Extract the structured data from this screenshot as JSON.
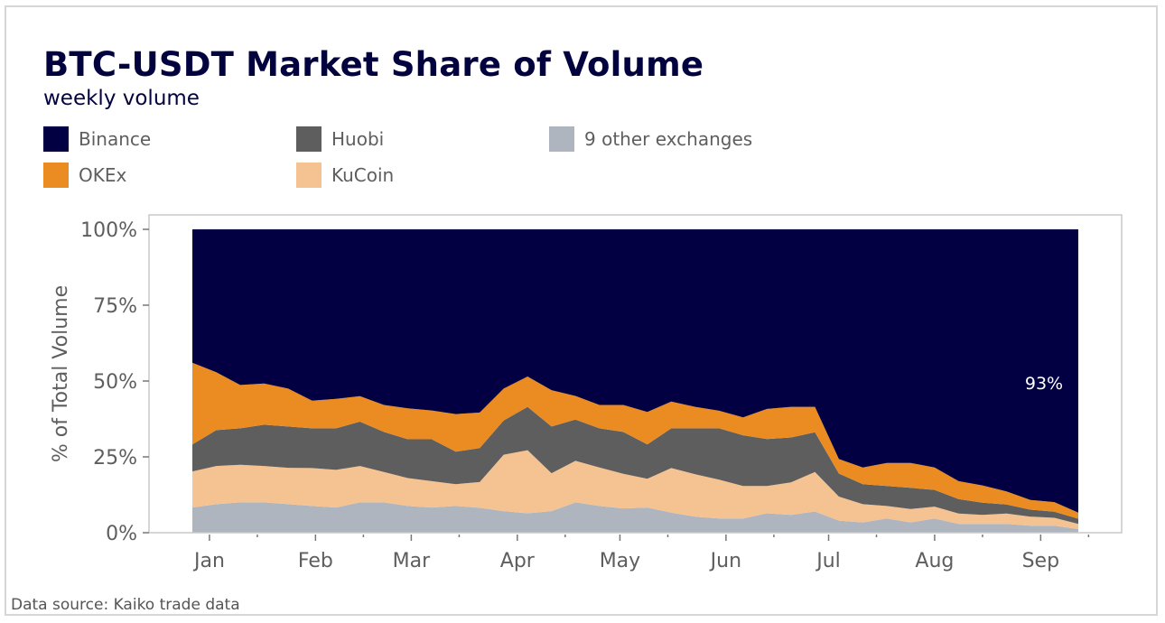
{
  "title": "BTC-USDT Market Share of Volume",
  "subtitle": "weekly volume",
  "source": "Data source: Kaiko trade data",
  "chart_data": {
    "type": "area",
    "stacked": true,
    "normalized": true,
    "title": "BTC-USDT Market Share of Volume",
    "subtitle": "weekly volume",
    "ylabel": "% of Total Volume",
    "xlabel": "",
    "ylim": [
      0,
      100
    ],
    "yticks": [
      0,
      25,
      50,
      75,
      100
    ],
    "ytick_labels": [
      "0%",
      "25%",
      "50%",
      "75%",
      "100%"
    ],
    "xlim": [
      "2020-12-27",
      "2021-09-12"
    ],
    "xticks": [
      {
        "date": "2021-01-01",
        "label": "Jan"
      },
      {
        "date": "2021-02-01",
        "label": "Feb"
      },
      {
        "date": "2021-03-01",
        "label": "Mar"
      },
      {
        "date": "2021-04-01",
        "label": "Apr"
      },
      {
        "date": "2021-05-01",
        "label": "May"
      },
      {
        "date": "2021-06-01",
        "label": "Jun"
      },
      {
        "date": "2021-07-01",
        "label": "Jul"
      },
      {
        "date": "2021-08-01",
        "label": "Aug"
      },
      {
        "date": "2021-09-01",
        "label": "Sep"
      }
    ],
    "grid": false,
    "legend_position": "top-left",
    "annotation": {
      "text": "93%",
      "series": "Binance",
      "date": "2021-09-12"
    },
    "x_start": "2020-12-27",
    "x_step_days": 7,
    "series": [
      {
        "name": "9 other exchanges",
        "color": "#aeb5bf",
        "values": [
          8.3,
          9.4,
          10.0,
          10.0,
          9.4,
          8.8,
          8.3,
          10.0,
          10.0,
          8.8,
          8.3,
          8.8,
          8.2,
          7.1,
          6.4,
          7.1,
          10.0,
          8.8,
          8.0,
          8.3,
          6.6,
          5.3,
          4.7,
          4.7,
          6.4,
          5.9,
          7.0,
          4.0,
          3.4,
          4.7,
          3.4,
          4.7,
          2.9,
          2.9,
          2.9,
          2.3,
          2.3,
          1.2
        ]
      },
      {
        "name": "KuCoin",
        "color": "#f5c392",
        "values": [
          11.9,
          12.6,
          12.4,
          12.0,
          12.0,
          12.5,
          12.4,
          12.0,
          10.0,
          9.2,
          8.7,
          7.2,
          8.5,
          18.6,
          20.8,
          12.5,
          13.7,
          12.7,
          11.4,
          9.5,
          14.7,
          14.0,
          12.8,
          10.7,
          9.0,
          10.7,
          13.0,
          7.9,
          6.0,
          4.1,
          4.4,
          3.9,
          3.4,
          3.0,
          3.4,
          3.0,
          2.6,
          1.7
        ]
      },
      {
        "name": "Huobi",
        "color": "#5e5e5e",
        "values": [
          8.9,
          11.8,
          12.0,
          13.6,
          13.6,
          13.1,
          13.7,
          14.6,
          13.2,
          12.8,
          13.8,
          10.7,
          11.2,
          11.3,
          14.3,
          15.4,
          13.6,
          12.9,
          13.8,
          11.3,
          13.1,
          15.1,
          16.9,
          16.7,
          15.5,
          14.8,
          13.1,
          7.6,
          6.6,
          6.6,
          7.0,
          5.5,
          4.8,
          4.0,
          3.0,
          2.3,
          2.0,
          1.7
        ]
      },
      {
        "name": "OKEx",
        "color": "#ea8c21",
        "values": [
          26.9,
          19.1,
          14.3,
          13.6,
          12.5,
          9.1,
          9.7,
          8.4,
          8.9,
          10.2,
          9.5,
          12.4,
          11.7,
          10.5,
          10.0,
          12.0,
          7.8,
          7.7,
          8.9,
          10.7,
          8.8,
          7.1,
          5.8,
          5.9,
          9.9,
          10.1,
          8.4,
          4.8,
          5.5,
          7.6,
          8.2,
          7.4,
          5.9,
          5.7,
          4.3,
          3.2,
          3.2,
          2.0
        ]
      },
      {
        "name": "Binance",
        "color": "#020042",
        "values": [
          44.0,
          47.1,
          51.3,
          50.8,
          52.5,
          56.5,
          55.9,
          55.0,
          57.9,
          59.0,
          59.7,
          60.9,
          60.4,
          52.5,
          48.5,
          53.0,
          54.9,
          57.9,
          57.9,
          60.2,
          56.8,
          58.5,
          59.8,
          62.0,
          59.2,
          58.5,
          58.5,
          75.7,
          78.5,
          77.0,
          77.0,
          78.5,
          83.0,
          84.4,
          86.4,
          89.2,
          89.9,
          93.4
        ]
      }
    ]
  },
  "legend": [
    {
      "label": "Binance",
      "color": "#020042"
    },
    {
      "label": "Huobi",
      "color": "#5e5e5e"
    },
    {
      "label": "9 other exchanges",
      "color": "#aeb5bf"
    },
    {
      "label": "OKEx",
      "color": "#ea8c21"
    },
    {
      "label": "KuCoin",
      "color": "#f5c392"
    }
  ]
}
